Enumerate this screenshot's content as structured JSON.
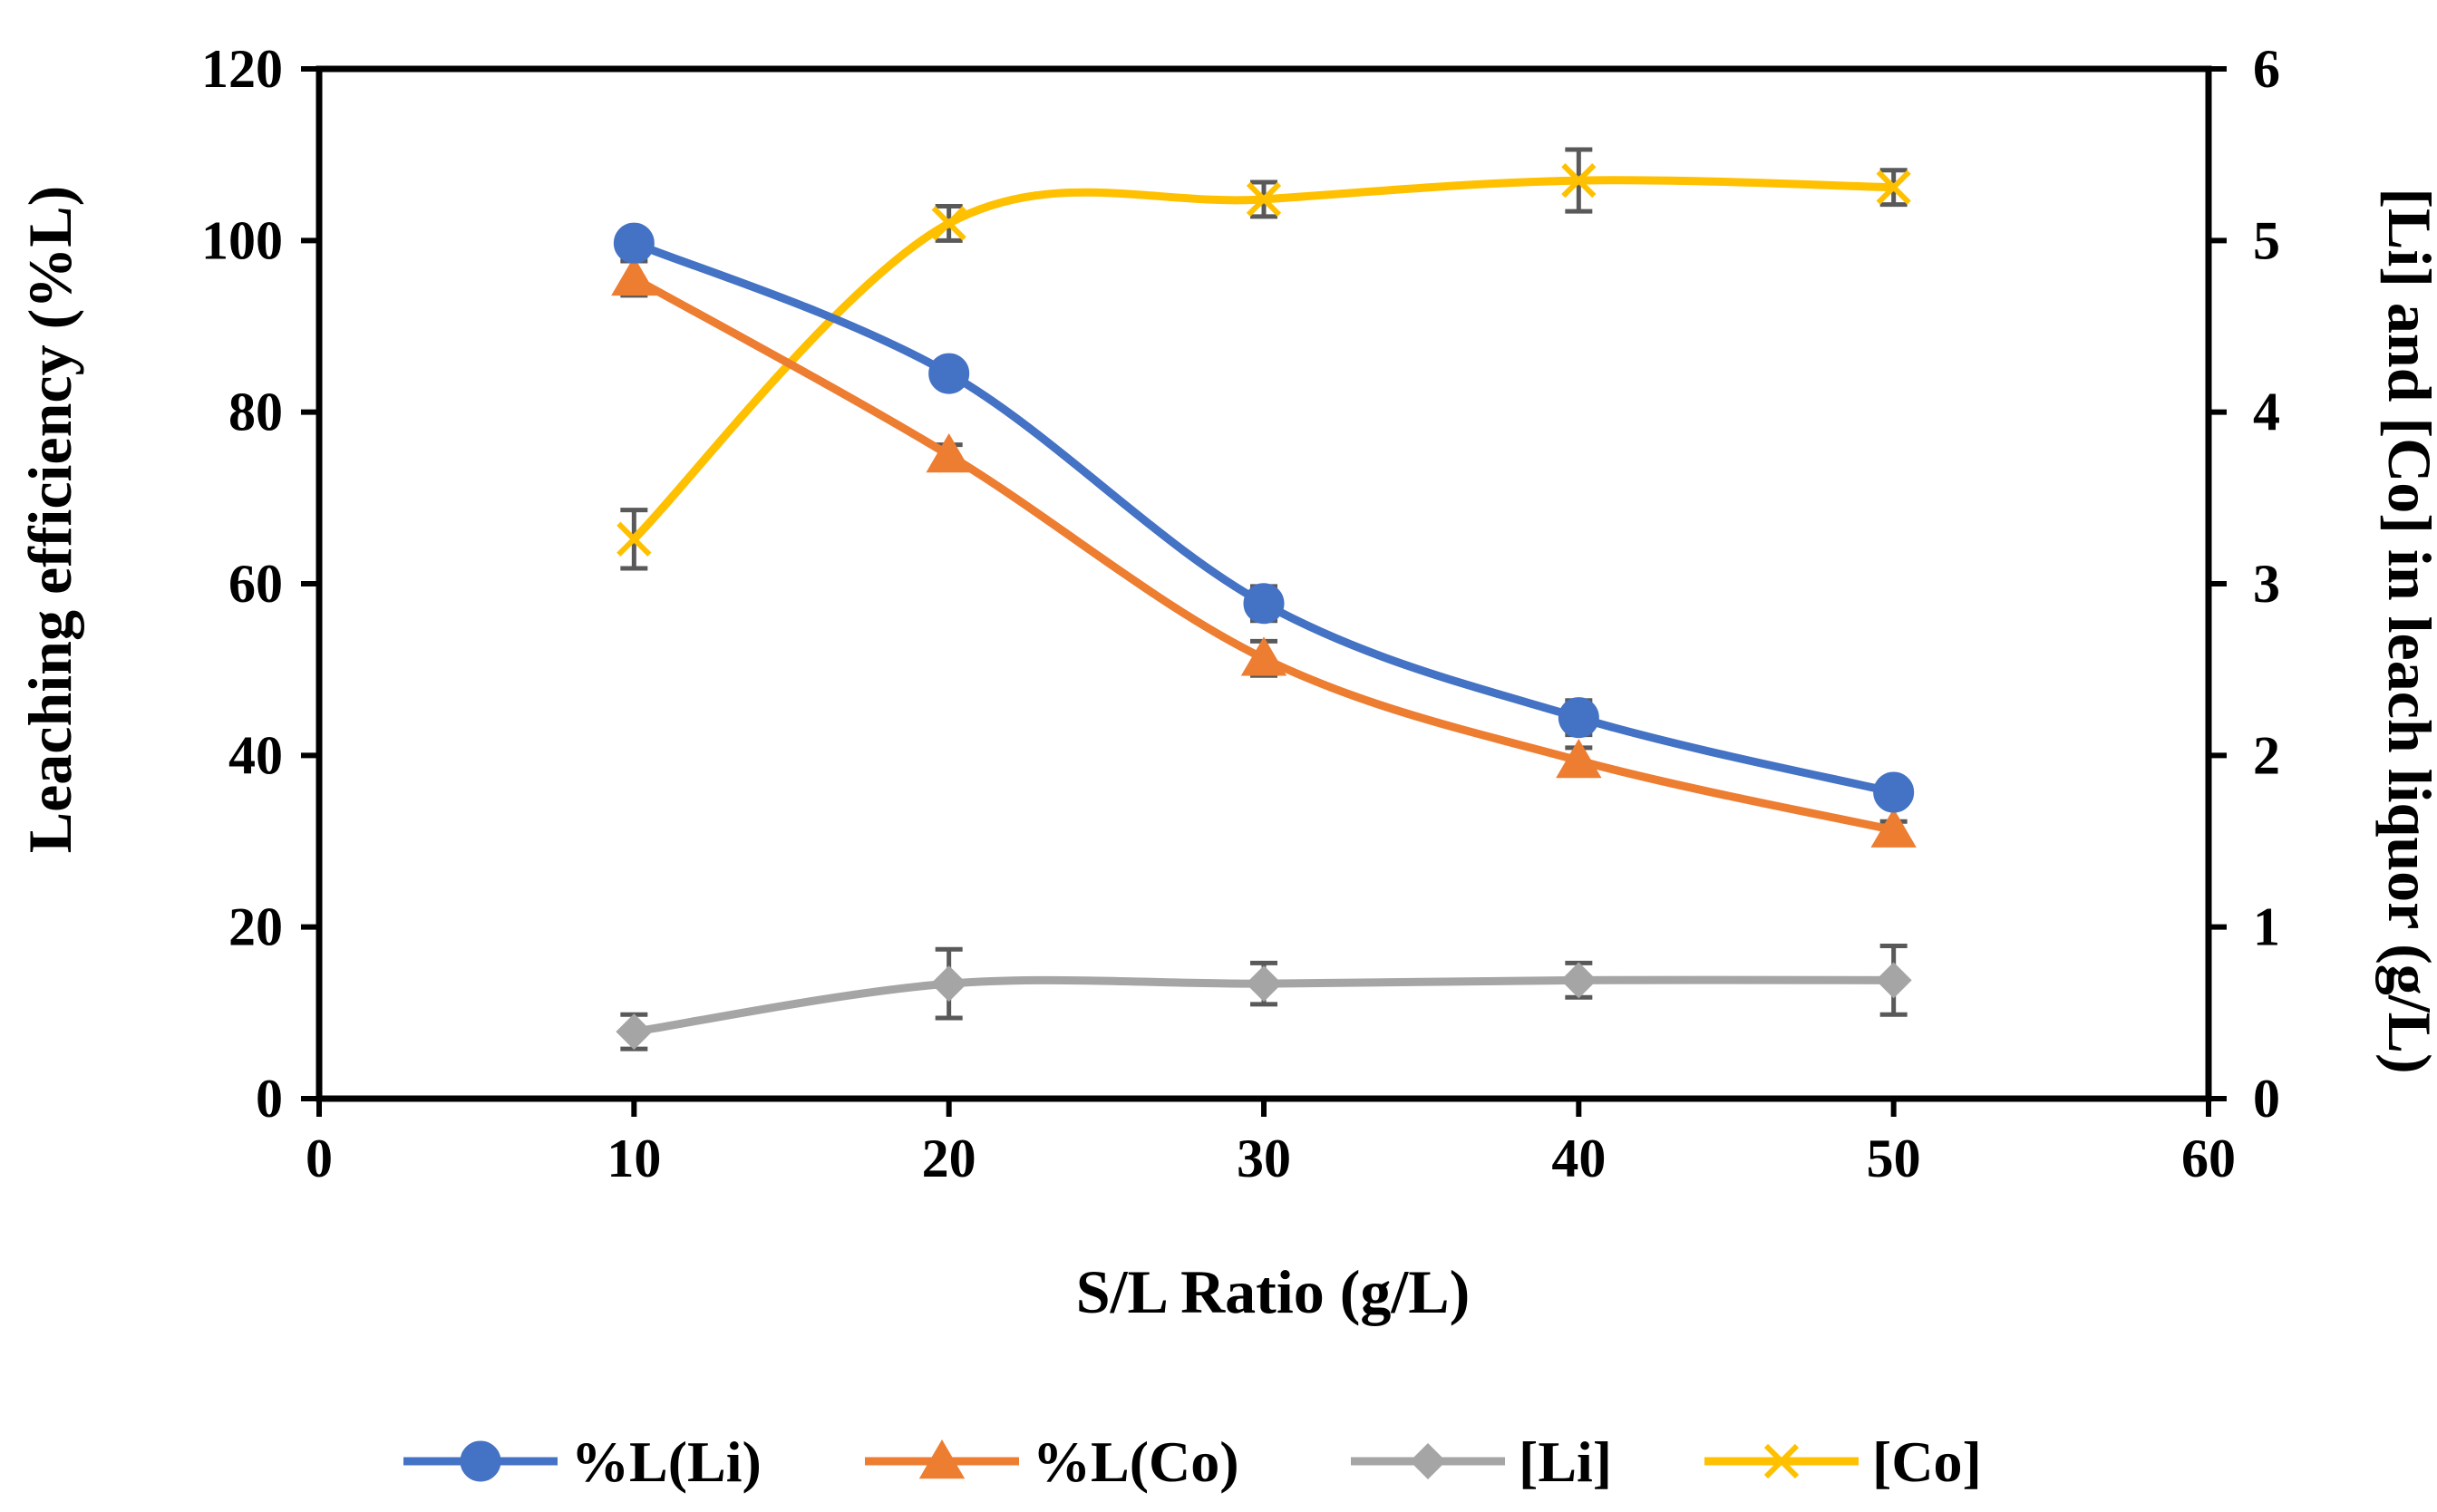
{
  "chart_data": {
    "type": "line",
    "title": "",
    "xlabel": "S/L Ratio (g/L)",
    "ylabel_left": "Leaching efficiency (%L)",
    "ylabel_right": "[Li] and [Co] in leach liquor (g/L)",
    "xlim": [
      0,
      60
    ],
    "ylim_left": [
      0,
      120
    ],
    "ylim_right": [
      0,
      6
    ],
    "x_ticks": [
      "0",
      "10",
      "20",
      "30",
      "40",
      "50",
      "60"
    ],
    "y_left_ticks": [
      "0",
      "20",
      "40",
      "60",
      "80",
      "100",
      "120"
    ],
    "y_right_ticks": [
      "0",
      "1",
      "2",
      "3",
      "4",
      "5",
      "6"
    ],
    "grid": false,
    "legend_position": "bottom",
    "x": [
      10,
      20,
      30,
      40,
      50
    ],
    "series": [
      {
        "name": "%L(Li)",
        "axis": "left",
        "color": "#4472C4",
        "marker": "circle",
        "values": [
          99.7,
          84.5,
          57.7,
          44.4,
          35.7
        ],
        "errors": [
          1.0,
          1.2,
          2.0,
          2.0,
          1.0
        ]
      },
      {
        "name": "%L(Co)",
        "axis": "left",
        "color": "#ED7D31",
        "marker": "triangle",
        "values": [
          95.6,
          75.0,
          51.3,
          39.4,
          31.3
        ],
        "errors": [
          2.0,
          1.2,
          2.0,
          1.5,
          1.0
        ]
      },
      {
        "name": "[Li]",
        "axis": "right",
        "color": "#A5A5A5",
        "marker": "diamond",
        "values": [
          0.39,
          0.67,
          0.67,
          0.69,
          0.69
        ],
        "errors": [
          0.1,
          0.2,
          0.12,
          0.1,
          0.2
        ]
      },
      {
        "name": "[Co]",
        "axis": "right",
        "color": "#FFC000",
        "marker": "x",
        "values": [
          3.26,
          5.1,
          5.24,
          5.35,
          5.31
        ],
        "errors": [
          0.17,
          0.1,
          0.1,
          0.18,
          0.1
        ]
      }
    ],
    "error_bar_color": "#595959"
  }
}
